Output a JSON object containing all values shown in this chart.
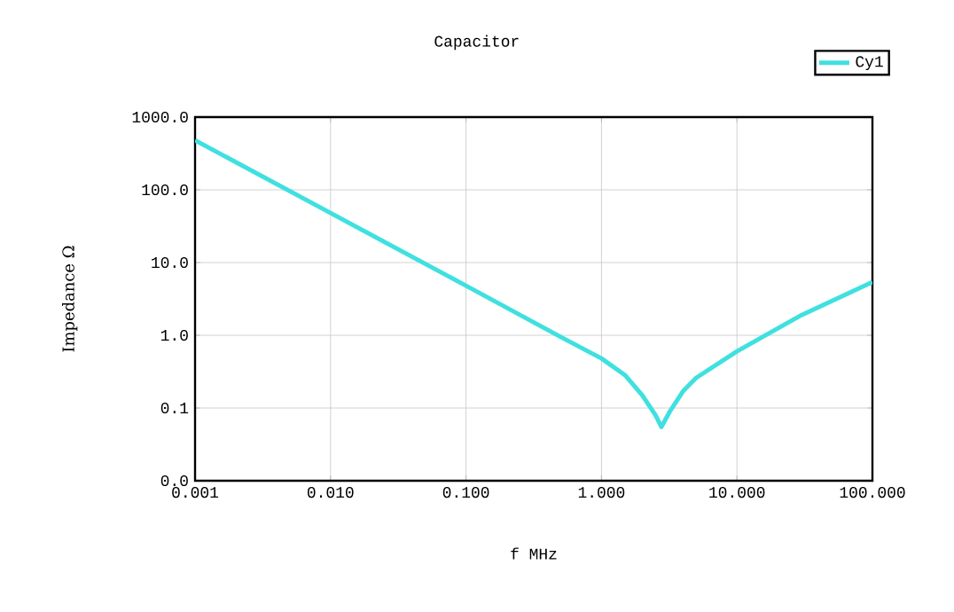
{
  "chart_data": {
    "type": "line",
    "title": "Capacitor",
    "xlabel": "f MHz",
    "ylabel": "Impedance Ω",
    "log": "xy",
    "grid": true,
    "legend": "top right",
    "marker": "none",
    "line_style": "solid",
    "xlim": [
      0.001,
      100
    ],
    "ylim": [
      0.01,
      1000
    ],
    "xticks": [
      {
        "value": 0.001,
        "label": "0.001"
      },
      {
        "value": 0.01,
        "label": "0.010"
      },
      {
        "value": 0.1,
        "label": "0.100"
      },
      {
        "value": 1,
        "label": "1.000"
      },
      {
        "value": 10,
        "label": "10.000"
      },
      {
        "value": 100,
        "label": "100.000"
      }
    ],
    "yticks": [
      {
        "value": 0.01,
        "label": "0.0"
      },
      {
        "value": 0.1,
        "label": "0.1"
      },
      {
        "value": 1,
        "label": "1.0"
      },
      {
        "value": 10,
        "label": "10.0"
      },
      {
        "value": 100,
        "label": "100.0"
      },
      {
        "value": 1000,
        "label": "1000.0"
      }
    ],
    "x": [
      0.001,
      0.01,
      0.1,
      0.5,
      1,
      1.5,
      2,
      2.5,
      2.77,
      3.2,
      4,
      5,
      10,
      30,
      100
    ],
    "series": [
      {
        "name": "Cy1",
        "color": "#40e0e0",
        "values": [
          480,
          48,
          4.8,
          0.95,
          0.48,
          0.28,
          0.15,
          0.08,
          0.055,
          0.09,
          0.17,
          0.26,
          0.6,
          1.9,
          5.4
        ]
      }
    ]
  }
}
